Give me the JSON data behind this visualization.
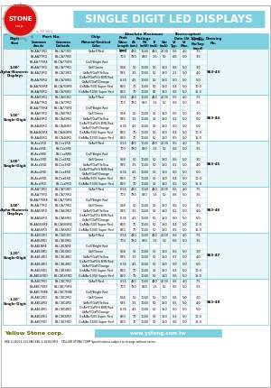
{
  "title": "SINGLE DIGIT LED DISPLAYS",
  "header_bg": "#7ECFE0",
  "border_color": "#7ECFE0",
  "row_color_a": "#E8F6FA",
  "row_color_b": "#FFFFFF",
  "sections": [
    {
      "label": "1.00\"\nAlpha-Numeric\nDisplays",
      "rows": [
        [
          "BS-AA71RD",
          "BS-CA71RD",
          "GaAsP/Red",
          "0.55",
          "480",
          "1040",
          "480",
          "2000",
          "0.6",
          "4.0",
          "7.5"
        ],
        [
          "BS-AA77RD",
          "BS-CA77RD",
          "",
          "700",
          "780",
          "880",
          "1.5",
          "50",
          "0.6",
          "5.0",
          "3.5"
        ],
        [
          "BS-AA77SRE",
          "BS-CA77SRE",
          "GaP/Bright Red",
          "",
          "",
          "",
          "",
          "",
          "",
          "",
          ""
        ],
        [
          "BS-AA77RD",
          "BS-CA77RD",
          "GaP/Green",
          "568",
          "50",
          "1040",
          "50",
          "150",
          "0.6",
          "5.0",
          "3.0"
        ],
        [
          "BS-AA73RD",
          "BS-CA73RD",
          "GaAsP/GaP/Yellow",
          "585",
          "3.5",
          "1040",
          "50",
          "150",
          "2.1",
          "5.0",
          "4.0"
        ],
        [
          "BS-AA76RD",
          "BS-CA76RD",
          "GaAsP/GaP/Hi B/W Red\nGaAsP/GaP/Orange",
          "6.35",
          "4.5",
          "1040",
          "50",
          "150",
          "0.0",
          "5.0",
          "5.0"
        ],
        [
          "BS-AA76SRE",
          "BS-CA76SRE",
          "GaAlAs/500 Super Red",
          "660",
          "70",
          "1040",
          "50",
          "150",
          "0.4",
          "5.0",
          "10.0"
        ],
        [
          "BS-AA76RD",
          "BS-CA76RD",
          "GaAlAs/1000 Super Red",
          "660",
          "70",
          "1040",
          "80",
          "150",
          "0.6",
          "5.0",
          "15.0"
        ]
      ],
      "drawing": "S63-43",
      "n_rows": 9
    },
    {
      "label": "1.00\"\nSingle-Digit",
      "rows": [
        [
          "BS-AA01RD",
          "BS-CA01RD",
          "GaAsP/Red",
          "0.55",
          "480",
          "1040",
          "480",
          "2000",
          "0.6",
          "4.0",
          "7.5"
        ],
        [
          "BS-AA77RD",
          "BS-CA77RD",
          "",
          "700",
          "780",
          "880",
          "1.5",
          "50",
          "0.6",
          "5.0",
          "3.5"
        ],
        [
          "BS-AA77SRE",
          "BS-CA77SRE",
          "GaP/Bright Red",
          "",
          "",
          "",
          "",
          "",
          "",
          "",
          ""
        ],
        [
          "BS-AA07RD",
          "BS-CA07RD",
          "GaP/Green",
          "568",
          "50",
          "1040",
          "50",
          "150",
          "0.6",
          "5.0",
          "3.0"
        ],
        [
          "BS-AA43RD",
          "BS-CA43RD",
          "GaAsP/GaP/Yellow",
          "585",
          "3.5",
          "1040",
          "50",
          "150",
          "0.2",
          "5.0",
          "0.0"
        ],
        [
          "BS-AA46RD",
          "BS-CA46RD",
          "GaAsP/GaP/Hi B/W Red\nGaAsP/GaP/Orange",
          "6.35",
          "4.5",
          "1040",
          "50",
          "150",
          "0.0",
          "5.0",
          "5.0"
        ],
        [
          "BS-AA46SRE",
          "BS-CA46SRE",
          "GaAlAs/500 Super Red",
          "660",
          "70",
          "1040",
          "50",
          "150",
          "0.4",
          "5.0",
          "10.0"
        ],
        [
          "BS-AA46RD",
          "BS-CA46RD",
          "GaAlAs/1000 Super Red",
          "660",
          "70",
          "1040",
          "50",
          "150",
          "0.5",
          "5.0",
          "15.0"
        ]
      ],
      "drawing": "S63-44",
      "n_rows": 9
    },
    {
      "label": "1.00\"\nSingle-Digit",
      "rows": [
        [
          "BS-Axx1RD",
          "BS-Cxx1RD",
          "GaAsP/Red",
          "0.55",
          "480",
          "1040",
          "480",
          "2000",
          "0.6",
          "4.0",
          "7.5"
        ],
        [
          "BS-AxxSRE",
          "BS-CxxSRE",
          "",
          "700",
          "780",
          "880",
          "1.5",
          "50",
          "0.6",
          "5.0",
          "3.5"
        ],
        [
          "BS-AxxNRE",
          "BS-CxxNRE",
          "GaP/Bright Red",
          "",
          "",
          "",
          "",
          "",
          "",
          "",
          ""
        ],
        [
          "BS-Axx2RD",
          "BS-Cxx2RD",
          "GaP/Green",
          "568",
          "50",
          "1040",
          "50",
          "150",
          "0.6",
          "5.0",
          "3.0"
        ],
        [
          "BS-Axx3RD",
          "BS-Cxx3RD",
          "GaAsP/GaP/Yellow",
          "585",
          "3.5",
          "1040",
          "50",
          "150",
          "0.2",
          "5.0",
          "4.0"
        ],
        [
          "BS-Axx4RD",
          "BS-Cxx4RD",
          "GaAsP/GaP/Hi B/W Red\nGaAsP/GaP/Orange",
          "6.35",
          "4.5",
          "1040",
          "50",
          "150",
          "0.0",
          "5.0",
          "5.0"
        ],
        [
          "BS-Axx6RD",
          "BS-Cxx6RD",
          "GaAlAs/500 Super Red",
          "660",
          "70",
          "1040",
          "50",
          "150",
          "0.4",
          "5.0",
          "10.0"
        ],
        [
          "BS-AxxFRD",
          "BS-CxxFRD",
          "GaAlAs/1000 Super Red",
          "660",
          "70",
          "1040",
          "50",
          "150",
          "0.5",
          "5.0",
          "15.0"
        ]
      ],
      "drawing": "S63-45",
      "n_rows": 9
    },
    {
      "label": "1.00\"\nAlpha-Numeric\nDisplays",
      "rows": [
        [
          "BS-AA71RD",
          "BS-CA71RD",
          "GaAsP/Red",
          "0.55",
          "480",
          "1040",
          "480",
          "2000",
          "0.6",
          "4.0",
          "7.5"
        ],
        [
          "BS-AA77RD",
          "BS-CA77RD",
          "",
          "700",
          "780",
          "880",
          "1.5",
          "50",
          "0.6",
          "5.0",
          "3.5"
        ],
        [
          "BS-AA77SRE",
          "BS-CA77SRE",
          "GaP/Bright Red",
          "",
          "",
          "",
          "",
          "",
          "",
          "",
          ""
        ],
        [
          "BS-AA77RD",
          "BS-CA77RD",
          "GaP/Green",
          "568",
          "50",
          "1040",
          "50",
          "150",
          "0.6",
          "5.0",
          "3.0"
        ],
        [
          "BS-AA53RD",
          "BS-CA53RD",
          "GaAsP/GaP/Yellow",
          "585",
          "3.5",
          "1040",
          "50",
          "150",
          "0.2",
          "5.0",
          "4.0"
        ],
        [
          "BS-AA56RD",
          "BS-CA56RD",
          "GaAsP/GaP/Hi B/W Red\nGaAsP/GaP/Orange",
          "6.35",
          "4.5",
          "1040",
          "50",
          "150",
          "0.0",
          "5.0",
          "5.0"
        ],
        [
          "BS-AA56SRE",
          "BS-CA56SRE",
          "GaAlAs/500 Super Red",
          "660",
          "70",
          "1040",
          "50",
          "150",
          "0.4",
          "5.0",
          "10.0"
        ],
        [
          "BS-AA56RD",
          "BS-CA56RD",
          "GaAlAs/1000 Super Red",
          "660",
          "70",
          "1040",
          "50",
          "150",
          "0.6",
          "5.0",
          "15.0"
        ]
      ],
      "drawing": "S63-46",
      "n_rows": 9
    },
    {
      "label": "1.20\"\nSingle-Digit",
      "rows": [
        [
          "BS-AB01RD",
          "BS-CB01RD",
          "GaAsP/Red",
          "0.55",
          "480",
          "1040",
          "480",
          "2000",
          "0.6",
          "4.0",
          "7.5"
        ],
        [
          "BS-AB10RD",
          "BS-CB10RD",
          "",
          "700",
          "780",
          "880",
          "1.5",
          "50",
          "0.6",
          "5.0",
          "3.5"
        ],
        [
          "BS-AB1NRE",
          "BS-CB1NRE",
          "GaP/Bright Red",
          "",
          "",
          "",
          "",
          "",
          "",
          "",
          ""
        ],
        [
          "BS-AB10RD",
          "BS-CB10RD",
          "GaP/Green",
          "568",
          "50",
          "1040",
          "50",
          "150",
          "0.6",
          "5.0",
          "3.0"
        ],
        [
          "BS-AB14RD",
          "BS-CB14RD",
          "GaAsP/GaP/Yellow",
          "585",
          "3.5",
          "1040",
          "50",
          "150",
          "0.7",
          "5.0",
          "4.0"
        ],
        [
          "BS-AB14RD",
          "BS-CB14RD",
          "GaAsP/GaP/Hi B/W Red\nGaAsP/GaP/Orange",
          "6.35",
          "4.5",
          "1040",
          "50",
          "150",
          "0.0",
          "5.0",
          "5.0"
        ],
        [
          "BS-AB16RD",
          "BS-CB16RD",
          "GaAlAs/500 Super Red",
          "660",
          "70",
          "1040",
          "50",
          "150",
          "0.4",
          "5.0",
          "10.0"
        ],
        [
          "BS-AB16FRD",
          "BS-CB16FRD",
          "GaAlAs/1000 Super Red",
          "660",
          "70",
          "1040",
          "50",
          "150",
          "0.6",
          "5.0",
          "15.0"
        ]
      ],
      "drawing": "S63-47",
      "n_rows": 9
    },
    {
      "label": "1.20\"\nSingle-Digit",
      "rows": [
        [
          "BS-ABC7RD",
          "BS-CBC7RD",
          "GaAsP/Red",
          "0.55",
          "480",
          "1040",
          "480",
          "2000",
          "0.6",
          "4.0",
          "7.5"
        ],
        [
          "BS-ABC7SRE",
          "BS-CBC7SRE",
          "",
          "700",
          "780",
          "880",
          "1.5",
          "50",
          "0.6",
          "5.0",
          "3.5"
        ],
        [
          "BS-ABC7NRE",
          "BS-CBC7NRE",
          "GaP/Bright Red",
          "",
          "",
          "",
          "",
          "",
          "",
          "",
          ""
        ],
        [
          "BS-ABC2RD",
          "BS-CBC2RD",
          "GaP/Green",
          "568",
          "50",
          "1040",
          "50",
          "150",
          "0.6",
          "5.0",
          "3.0"
        ],
        [
          "BS-ABC4RD",
          "BS-CBC4RD",
          "GaAsP/GaP/Yellow",
          "585",
          "3.5",
          "1040",
          "50",
          "150",
          "0.5",
          "5.0",
          "4.0"
        ],
        [
          "BS-ABC4RD",
          "BS-CBC4RD",
          "GaAsP/GaP/Hi B/W Red\nGaAsP/GaP/Orange",
          "6.35",
          "4.5",
          "1040",
          "50",
          "150",
          "0.0",
          "5.0",
          "5.0"
        ],
        [
          "BS-ABC6RD",
          "BS-CBC6RD",
          "GaAlAs/500 Super Red",
          "660",
          "70",
          "1040",
          "50",
          "150",
          "0.4",
          "5.0",
          "10.0"
        ],
        [
          "BS-ABCFRD",
          "BS-CBCFRD",
          "GaAlAs/1000 Super Red",
          "660",
          "70",
          "1040",
          "50",
          "150",
          "0.6",
          "5.0",
          "15.0"
        ]
      ],
      "drawing": "S63-48",
      "n_rows": 9
    }
  ],
  "footer_company": "Yellow Stone corp.",
  "footer_url": "www.ystong.com.tw",
  "footer_contact": "886-2-26223-521 FAX:886-2-26262369    YELLOW STONE CORP Specifications subject to change without notice.",
  "bg_color": "#FFFFFF",
  "logo_text": "STONE"
}
